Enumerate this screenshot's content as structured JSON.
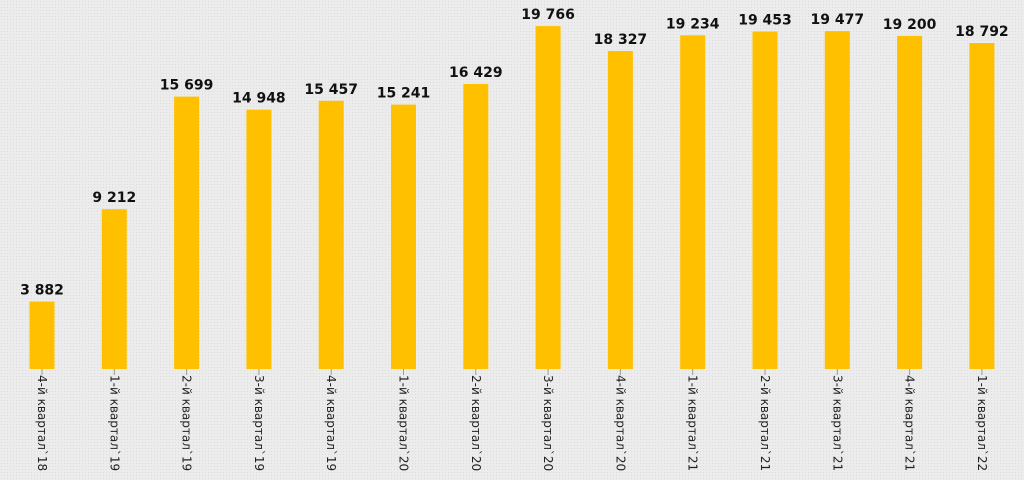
{
  "chart_data": {
    "type": "bar",
    "title": "",
    "xlabel": "",
    "ylabel": "",
    "categories": [
      "4-й квартал`18",
      "1-й квартал`19",
      "2-й квартал`19",
      "3-й квартал`19",
      "4-й квартал`19",
      "1-й квартал`20",
      "2-й квартал`20",
      "3-й квартал`20",
      "4-й квартал`20",
      "1-й квартал`21",
      "2-й квартал`21",
      "3-й квартал`21",
      "4-й квартал`21",
      "1-й квартал`22"
    ],
    "values": [
      3882,
      9212,
      15699,
      14948,
      15457,
      15241,
      16429,
      19766,
      18327,
      19234,
      19453,
      19477,
      19200,
      18792
    ],
    "value_labels": [
      "3 882",
      "9 212",
      "15 699",
      "14 948",
      "15 457",
      "15 241",
      "16 429",
      "19 766",
      "18 327",
      "19 234",
      "19 453",
      "19 477",
      "19 200",
      "18 792"
    ],
    "ylim": [
      0,
      20000
    ],
    "grid": false,
    "legend": "none",
    "bar_color": "#ffc000"
  }
}
